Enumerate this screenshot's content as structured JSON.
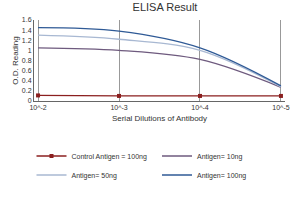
{
  "chart_data": {
    "type": "line",
    "title": "ELISA Result",
    "x_label": "Serial Dilutions of Antibody",
    "y_label": "O.D. Reading",
    "categories": [
      "10^-2",
      "10^-3",
      "10^-4",
      "10^-5"
    ],
    "series": [
      {
        "name": "Control Antigen = 100ng",
        "color": "#8b1f1f",
        "marker": "square",
        "values": [
          0.11,
          0.1,
          0.1,
          0.1
        ]
      },
      {
        "name": "Antigen= 10ng",
        "color": "#6e5a7e",
        "values": [
          1.05,
          1.0,
          0.82,
          0.27
        ]
      },
      {
        "name": "Antigen= 50ng",
        "color": "#a8b8d2",
        "values": [
          1.3,
          1.22,
          1.0,
          0.28
        ]
      },
      {
        "name": "Antigen= 100ng",
        "color": "#2f5a96",
        "values": [
          1.45,
          1.38,
          1.05,
          0.3
        ]
      }
    ],
    "ylim": [
      0,
      1.6
    ],
    "yticks": [
      0,
      0.2,
      0.4,
      0.6,
      0.8,
      1,
      1.2,
      1.4,
      1.6
    ],
    "grid": true,
    "legend": "bottom"
  }
}
